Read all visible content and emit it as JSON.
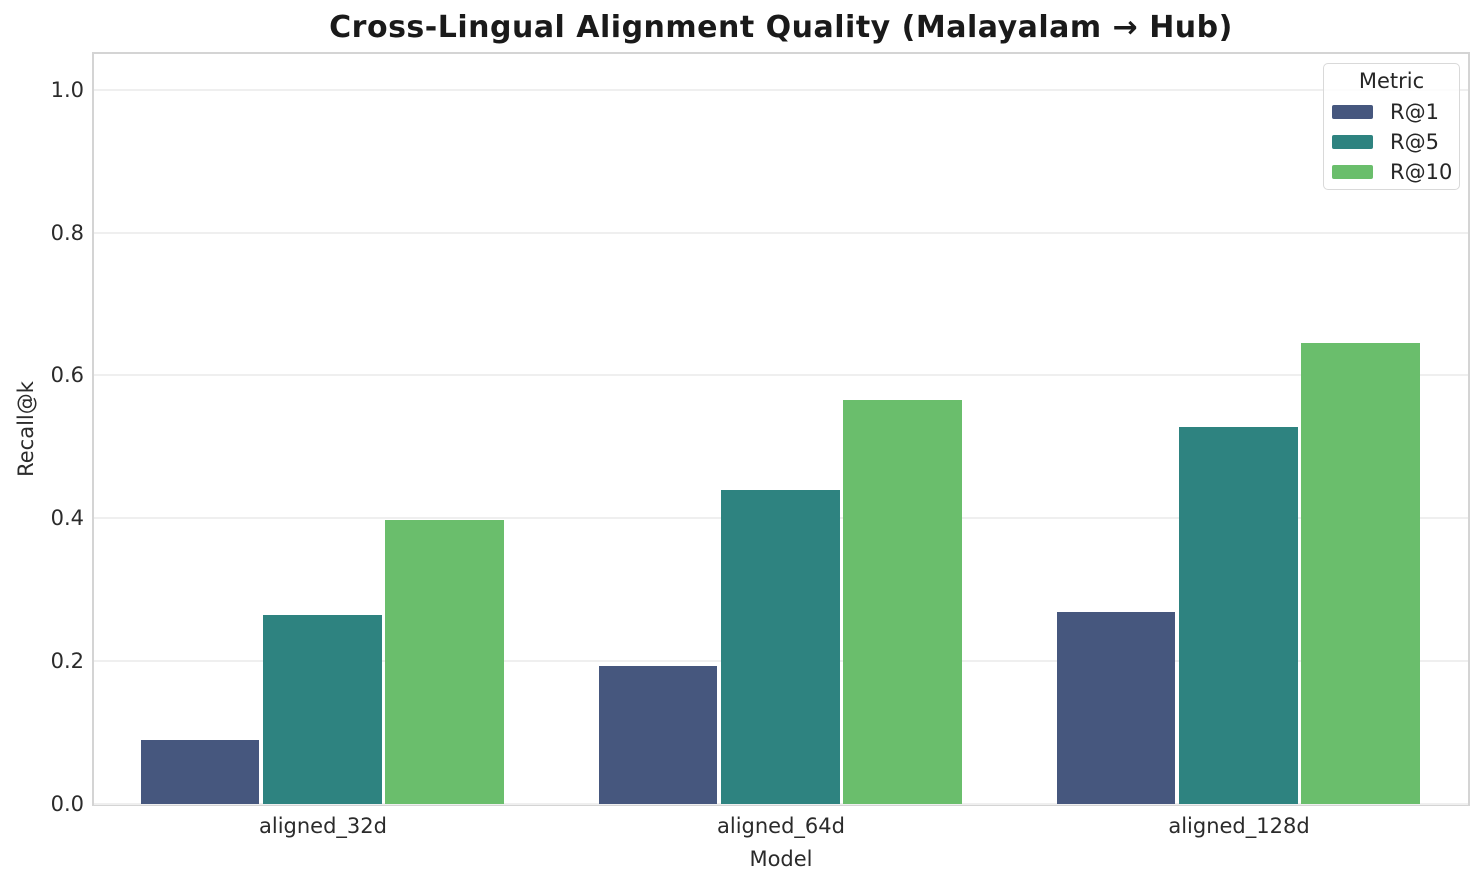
{
  "chart_data": {
    "type": "bar",
    "title": "Cross-Lingual Alignment Quality (Malayalam → Hub)",
    "xlabel": "Model",
    "ylabel": "Recall@k",
    "categories": [
      "aligned_32d",
      "aligned_64d",
      "aligned_128d"
    ],
    "series": [
      {
        "name": "R@1",
        "color": "#46577E",
        "values": [
          0.09,
          0.193,
          0.269
        ]
      },
      {
        "name": "R@5",
        "color": "#2E8380",
        "values": [
          0.265,
          0.44,
          0.528
        ]
      },
      {
        "name": "R@10",
        "color": "#6ABE6C",
        "values": [
          0.398,
          0.565,
          0.646
        ]
      }
    ],
    "yticks": [
      0.0,
      0.2,
      0.4,
      0.6,
      0.8,
      1.0
    ],
    "ytick_labels": [
      "0.0",
      "0.2",
      "0.4",
      "0.6",
      "0.8",
      "1.0"
    ],
    "ylim": [
      0,
      1.05
    ],
    "grid": "horizontal",
    "legend_title": "Metric",
    "legend_position": "upper right"
  }
}
